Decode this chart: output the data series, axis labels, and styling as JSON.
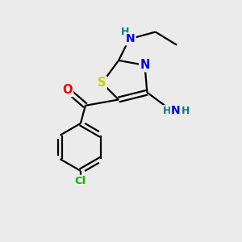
{
  "background_color": "#ebebeb",
  "atom_colors": {
    "C": "#000000",
    "N": "#0000ee",
    "O": "#ee0000",
    "S": "#cccc00",
    "Cl": "#00bb00",
    "H": "#008080"
  },
  "bond_color": "#000000",
  "figsize": [
    3.0,
    3.0
  ],
  "dpi": 100,
  "lw": 1.6
}
